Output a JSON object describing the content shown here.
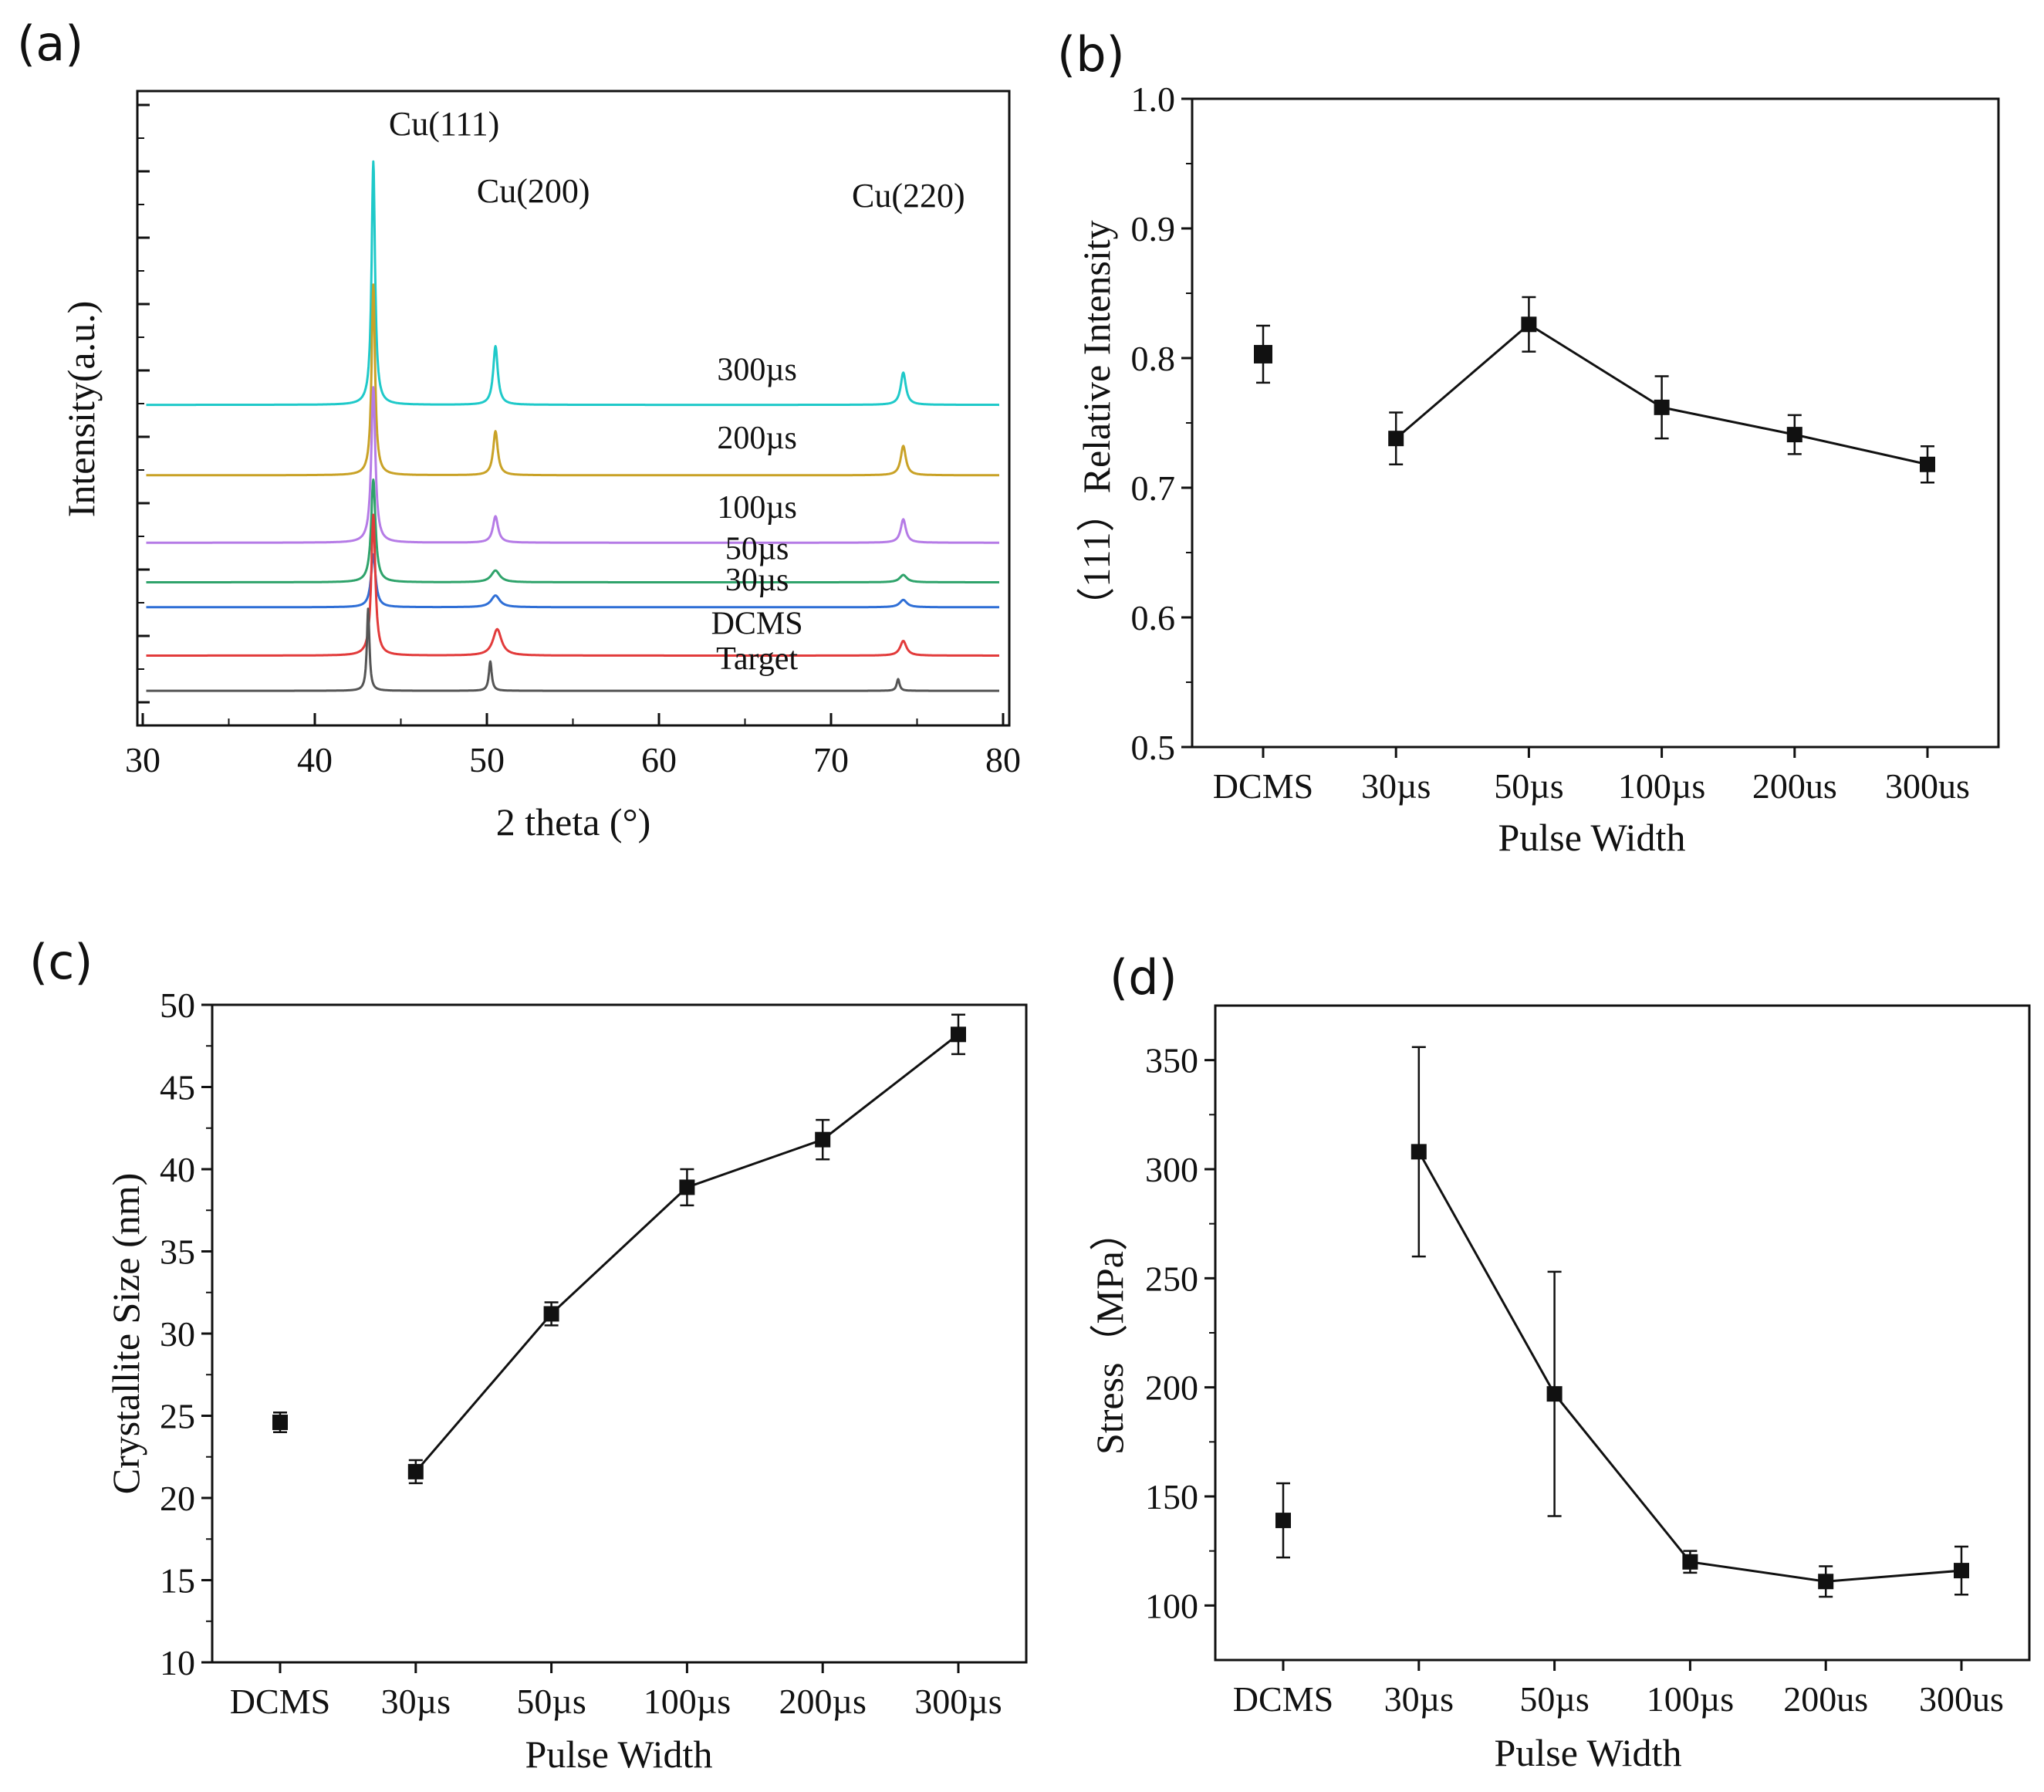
{
  "figure": {
    "panels": [
      "(a)",
      "(b)",
      "(c)",
      "(d)"
    ]
  },
  "chart_data": [
    {
      "id": "a",
      "type": "line",
      "panel_label": "(a)",
      "title": "",
      "xlabel": "2 theta (°)",
      "ylabel": "Intensity(a.u.)",
      "xlim": [
        30,
        80
      ],
      "xticks": [
        "30",
        "40",
        "50",
        "60",
        "70",
        "80"
      ],
      "yticks_shown": false,
      "peak_labels": [
        {
          "text": "Cu(111)",
          "x": 43.3
        },
        {
          "text": "Cu(200)",
          "x": 50.4
        },
        {
          "text": "Cu(220)",
          "x": 74.1
        }
      ],
      "series": [
        {
          "name": "300µs",
          "color": "#1fc9c9",
          "baseline": 10.8,
          "peaks": [
            {
              "x": 43.4,
              "h": 8.3,
              "w": 0.12
            },
            {
              "x": 50.5,
              "h": 2.0,
              "w": 0.16
            },
            {
              "x": 74.2,
              "h": 1.1,
              "w": 0.18
            }
          ]
        },
        {
          "name": "200µs",
          "color": "#c9a227",
          "baseline": 8.4,
          "peaks": [
            {
              "x": 43.4,
              "h": 6.5,
              "w": 0.12
            },
            {
              "x": 50.5,
              "h": 1.5,
              "w": 0.16
            },
            {
              "x": 74.2,
              "h": 1.0,
              "w": 0.18
            }
          ]
        },
        {
          "name": "100µs",
          "color": "#b57be6",
          "baseline": 6.1,
          "peaks": [
            {
              "x": 43.4,
              "h": 5.3,
              "w": 0.14
            },
            {
              "x": 50.5,
              "h": 0.9,
              "w": 0.18
            },
            {
              "x": 74.2,
              "h": 0.8,
              "w": 0.18
            }
          ]
        },
        {
          "name": "50µs",
          "color": "#2fa36b",
          "baseline": 4.75,
          "peaks": [
            {
              "x": 43.4,
              "h": 3.5,
              "w": 0.15
            },
            {
              "x": 50.5,
              "h": 0.4,
              "w": 0.3
            },
            {
              "x": 74.2,
              "h": 0.25,
              "w": 0.25
            }
          ]
        },
        {
          "name": "30µs",
          "color": "#2f6fd6",
          "baseline": 3.9,
          "peaks": [
            {
              "x": 43.4,
              "h": 1.8,
              "w": 0.16
            },
            {
              "x": 50.5,
              "h": 0.4,
              "w": 0.3
            },
            {
              "x": 74.2,
              "h": 0.25,
              "w": 0.25
            }
          ]
        },
        {
          "name": "DCMS",
          "color": "#e23b3b",
          "baseline": 2.25,
          "peaks": [
            {
              "x": 43.4,
              "h": 4.8,
              "w": 0.14
            },
            {
              "x": 50.6,
              "h": 0.9,
              "w": 0.3
            },
            {
              "x": 74.2,
              "h": 0.5,
              "w": 0.22
            }
          ]
        },
        {
          "name": "Target",
          "color": "#555555",
          "baseline": 1.05,
          "peaks": [
            {
              "x": 43.1,
              "h": 2.8,
              "w": 0.09
            },
            {
              "x": 50.2,
              "h": 1.0,
              "w": 0.1
            },
            {
              "x": 73.9,
              "h": 0.4,
              "w": 0.1
            }
          ]
        }
      ]
    },
    {
      "id": "b",
      "type": "scatter",
      "panel_label": "(b)",
      "title": "",
      "xlabel": "Pulse Width",
      "ylabel": "（111）Relative Intensity",
      "ylim": [
        0.5,
        1.0
      ],
      "yticks": [
        "0.5",
        "0.6",
        "0.7",
        "0.8",
        "0.9",
        "1.0"
      ],
      "categories": [
        "DCMS",
        "30µs",
        "50µs",
        "100µs",
        "200us",
        "300us"
      ],
      "values": [
        0.803,
        0.738,
        0.826,
        0.762,
        0.741,
        0.718
      ],
      "errors": [
        0.022,
        0.02,
        0.021,
        0.024,
        0.015,
        0.014
      ],
      "connected": [
        false,
        true,
        true,
        true,
        true,
        true
      ]
    },
    {
      "id": "c",
      "type": "scatter",
      "panel_label": "(c)",
      "title": "",
      "xlabel": "Pulse Width",
      "ylabel": "Crystallite Size (nm)",
      "ylim": [
        10,
        50
      ],
      "yticks": [
        "10",
        "15",
        "20",
        "25",
        "30",
        "35",
        "40",
        "45",
        "50"
      ],
      "categories": [
        "DCMS",
        "30µs",
        "50µs",
        "100µs",
        "200µs",
        "300µs"
      ],
      "values": [
        24.6,
        21.6,
        31.2,
        38.9,
        41.8,
        48.2
      ],
      "errors": [
        0.6,
        0.7,
        0.7,
        1.1,
        1.2,
        1.2
      ],
      "connected": [
        false,
        true,
        true,
        true,
        true,
        true
      ]
    },
    {
      "id": "d",
      "type": "scatter",
      "panel_label": "(d)",
      "title": "",
      "xlabel": "Pulse Width",
      "ylabel": "Stress（MPa）",
      "ylim": [
        75,
        375
      ],
      "yticks": [
        "100",
        "150",
        "200",
        "250",
        "300",
        "350"
      ],
      "ytick_values": [
        100,
        150,
        200,
        250,
        300,
        350
      ],
      "categories": [
        "DCMS",
        "30µs",
        "50µs",
        "100µs",
        "200us",
        "300us"
      ],
      "values": [
        139,
        308,
        197,
        120,
        111,
        116
      ],
      "errors": [
        17,
        48,
        56,
        5,
        7,
        11
      ],
      "connected": [
        false,
        true,
        true,
        true,
        true,
        true
      ]
    }
  ]
}
